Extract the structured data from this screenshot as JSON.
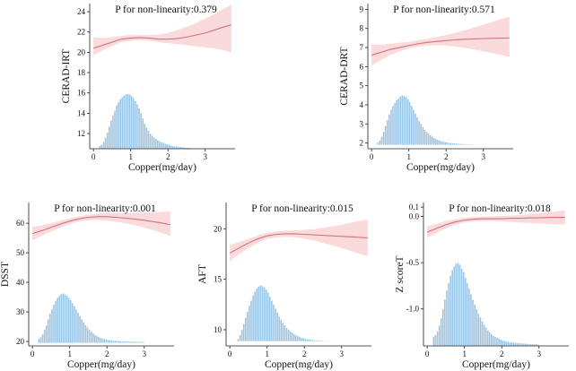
{
  "chart_data": [
    {
      "type": "line",
      "title": "P for non-linearity:0.379",
      "xlabel": "Copper(mg/day)",
      "ylabel": "CERAD-IRT",
      "x_ticks": [
        0,
        1,
        2,
        3
      ],
      "y_ticks": [
        12,
        14,
        16,
        18,
        20,
        22,
        24
      ],
      "xlim": [
        -0.1,
        3.8
      ],
      "ylim": [
        10.5,
        24.8
      ],
      "spline": {
        "x": [
          0.0,
          0.25,
          0.5,
          0.75,
          1.0,
          1.25,
          1.5,
          1.75,
          2.0,
          2.25,
          2.5,
          2.75,
          3.0,
          3.25,
          3.5,
          3.7
        ],
        "y": [
          20.4,
          20.7,
          21.0,
          21.3,
          21.4,
          21.45,
          21.4,
          21.3,
          21.3,
          21.35,
          21.5,
          21.7,
          21.9,
          22.2,
          22.5,
          22.7
        ],
        "lower": [
          19.7,
          20.2,
          20.6,
          21.0,
          21.15,
          21.2,
          21.15,
          21.0,
          20.9,
          20.8,
          20.7,
          20.6,
          20.5,
          20.4,
          20.2,
          20.0
        ],
        "upper": [
          21.5,
          21.4,
          21.5,
          21.65,
          21.7,
          21.7,
          21.7,
          21.75,
          21.9,
          22.2,
          22.5,
          22.9,
          23.3,
          23.8,
          24.3,
          24.7
        ]
      },
      "histogram": {
        "bin_start": 0.15,
        "bin_width": 0.05,
        "values": [
          10.8,
          10.9,
          11.2,
          11.6,
          12.1,
          12.7,
          13.3,
          13.8,
          14.3,
          14.8,
          15.1,
          15.4,
          15.6,
          15.75,
          15.85,
          15.9,
          15.85,
          15.7,
          15.5,
          15.2,
          14.9,
          14.5,
          14.0,
          13.5,
          13.0,
          12.6,
          12.3,
          12.0,
          11.8,
          11.6,
          11.5,
          11.35,
          11.25,
          11.15,
          11.1,
          11.0,
          10.95,
          10.9,
          10.85,
          10.8,
          10.75,
          10.75,
          10.7,
          10.7,
          10.65,
          10.65,
          10.6,
          10.6,
          10.6,
          10.58,
          10.56,
          10.55,
          10.55,
          10.54,
          10.53,
          10.53,
          10.52
        ],
        "baseline": 10.5
      }
    },
    {
      "type": "line",
      "title": "P for non-linearity:0.571",
      "xlabel": "Copper(mg/day)",
      "ylabel": "CERAD-DRT",
      "x_ticks": [
        0,
        1,
        2,
        3
      ],
      "y_ticks": [
        2,
        3,
        4,
        5,
        6,
        7,
        8,
        9
      ],
      "xlim": [
        -0.1,
        3.8
      ],
      "ylim": [
        1.7,
        9.3
      ],
      "spline": {
        "x": [
          0.0,
          0.25,
          0.5,
          0.75,
          1.0,
          1.25,
          1.5,
          1.75,
          2.0,
          2.25,
          2.5,
          2.75,
          3.0,
          3.25,
          3.5,
          3.7
        ],
        "y": [
          6.6,
          6.75,
          6.9,
          7.0,
          7.1,
          7.2,
          7.27,
          7.32,
          7.36,
          7.4,
          7.43,
          7.45,
          7.47,
          7.48,
          7.49,
          7.5
        ],
        "lower": [
          6.05,
          6.35,
          6.6,
          6.8,
          6.95,
          7.05,
          7.1,
          7.12,
          7.1,
          7.05,
          6.98,
          6.9,
          6.8,
          6.7,
          6.6,
          6.5
        ],
        "upper": [
          7.15,
          7.15,
          7.2,
          7.25,
          7.3,
          7.38,
          7.45,
          7.55,
          7.65,
          7.78,
          7.9,
          8.05,
          8.2,
          8.35,
          8.5,
          8.6
        ]
      },
      "histogram": {
        "bin_start": 0.15,
        "bin_width": 0.05,
        "values": [
          2.05,
          2.15,
          2.35,
          2.6,
          2.9,
          3.2,
          3.5,
          3.75,
          3.95,
          4.1,
          4.25,
          4.35,
          4.45,
          4.5,
          4.48,
          4.42,
          4.3,
          4.15,
          3.95,
          3.75,
          3.55,
          3.35,
          3.15,
          3.0,
          2.85,
          2.7,
          2.6,
          2.5,
          2.42,
          2.35,
          2.28,
          2.22,
          2.18,
          2.14,
          2.1,
          2.08,
          2.06,
          2.04,
          2.02,
          2.01,
          2.0,
          1.99,
          1.98,
          1.97,
          1.96,
          1.96,
          1.95,
          1.95,
          1.94,
          1.94,
          1.93,
          1.93,
          1.92,
          1.92,
          1.92,
          1.92,
          1.91
        ],
        "baseline": 1.9
      }
    },
    {
      "type": "line",
      "title": "P for non-linearity:0.001",
      "xlabel": "Copper(mg/day)",
      "ylabel": "DSST",
      "x_ticks": [
        0,
        1,
        2,
        3
      ],
      "y_ticks": [
        20,
        30,
        40,
        50,
        60
      ],
      "xlim": [
        -0.1,
        3.8
      ],
      "ylim": [
        18.5,
        67
      ],
      "spline": {
        "x": [
          0.0,
          0.25,
          0.5,
          0.75,
          1.0,
          1.25,
          1.5,
          1.75,
          2.0,
          2.25,
          2.5,
          2.75,
          3.0,
          3.25,
          3.5,
          3.7
        ],
        "y": [
          56.5,
          57.5,
          58.6,
          59.7,
          60.7,
          61.5,
          62.0,
          62.2,
          62.2,
          62.0,
          61.7,
          61.4,
          61.0,
          60.5,
          60.0,
          59.5
        ],
        "lower": [
          54.2,
          55.8,
          57.2,
          58.5,
          59.8,
          60.6,
          61.0,
          61.1,
          60.9,
          60.5,
          60.0,
          59.3,
          58.5,
          57.6,
          56.6,
          55.7
        ],
        "upper": [
          58.8,
          59.2,
          60.0,
          60.9,
          61.6,
          62.3,
          62.9,
          63.3,
          63.5,
          63.5,
          63.4,
          63.5,
          63.6,
          63.7,
          63.9,
          64.1
        ]
      },
      "histogram": {
        "bin_start": 0.15,
        "bin_width": 0.05,
        "values": [
          21.0,
          21.5,
          22.5,
          24.0,
          25.5,
          27.5,
          29.5,
          31.0,
          32.5,
          33.8,
          34.8,
          35.5,
          36.0,
          36.3,
          36.0,
          35.5,
          34.8,
          34.0,
          33.0,
          32.0,
          30.8,
          29.8,
          28.6,
          27.5,
          26.5,
          25.6,
          24.8,
          24.0,
          23.4,
          22.8,
          22.3,
          21.9,
          21.6,
          21.3,
          21.1,
          20.9,
          20.7,
          20.6,
          20.5,
          20.4,
          20.3,
          20.3,
          20.2,
          20.2,
          20.1,
          20.1,
          20.1,
          20.0,
          20.0,
          20.0,
          20.0,
          20.0,
          20.0,
          19.95,
          19.95,
          19.95,
          19.9
        ],
        "baseline": 19.5
      }
    },
    {
      "type": "line",
      "title": "P for non-linearity:0.015",
      "xlabel": "Copper(mg/day)",
      "ylabel": "AFT",
      "x_ticks": [
        0,
        1,
        2,
        3
      ],
      "y_ticks": [
        10,
        15,
        20
      ],
      "xlim": [
        -0.1,
        3.8
      ],
      "ylim": [
        8.4,
        22.6
      ],
      "spline": {
        "x": [
          0.0,
          0.25,
          0.5,
          0.75,
          1.0,
          1.25,
          1.5,
          1.75,
          2.0,
          2.25,
          2.5,
          2.75,
          3.0,
          3.25,
          3.5,
          3.7
        ],
        "y": [
          17.6,
          18.1,
          18.6,
          19.0,
          19.3,
          19.45,
          19.5,
          19.5,
          19.45,
          19.4,
          19.35,
          19.3,
          19.25,
          19.2,
          19.15,
          19.1
        ],
        "lower": [
          16.8,
          17.5,
          18.1,
          18.6,
          19.0,
          19.15,
          19.2,
          19.15,
          19.0,
          18.85,
          18.6,
          18.35,
          18.1,
          17.8,
          17.5,
          17.3
        ],
        "upper": [
          18.4,
          18.7,
          19.0,
          19.35,
          19.6,
          19.75,
          19.8,
          19.85,
          19.9,
          19.95,
          20.1,
          20.25,
          20.4,
          20.6,
          20.8,
          20.9
        ]
      },
      "histogram": {
        "bin_start": 0.15,
        "bin_width": 0.05,
        "values": [
          8.9,
          9.1,
          9.5,
          10.0,
          10.6,
          11.2,
          11.8,
          12.4,
          12.9,
          13.4,
          13.8,
          14.1,
          14.3,
          14.4,
          14.35,
          14.2,
          14.0,
          13.7,
          13.3,
          12.9,
          12.5,
          12.1,
          11.7,
          11.3,
          11.0,
          10.7,
          10.45,
          10.2,
          10.0,
          9.85,
          9.7,
          9.58,
          9.47,
          9.38,
          9.3,
          9.23,
          9.17,
          9.12,
          9.08,
          9.05,
          9.02,
          9.0,
          8.98,
          8.96,
          8.95,
          8.94,
          8.93,
          8.92,
          8.91,
          8.9,
          8.9,
          8.89,
          8.89,
          8.88,
          8.88,
          8.88,
          8.87
        ],
        "baseline": 8.85
      }
    },
    {
      "type": "line",
      "title": "P for non-linearity:0.018",
      "xlabel": "Copper(mg/day)",
      "ylabel": "Z scoreT",
      "x_ticks": [
        0,
        1,
        2,
        3
      ],
      "y_ticks": [
        -1.0,
        -0.5,
        0.0,
        0.1
      ],
      "y_tick_labels": [
        "-1.0",
        "-0.5",
        "0.0",
        "0.1"
      ],
      "xlim": [
        -0.1,
        3.8
      ],
      "ylim": [
        -1.4,
        0.15
      ],
      "spline": {
        "x": [
          0.0,
          0.25,
          0.5,
          0.75,
          1.0,
          1.25,
          1.5,
          1.75,
          2.0,
          2.25,
          2.5,
          2.75,
          3.0,
          3.25,
          3.5,
          3.7
        ],
        "y": [
          -0.17,
          -0.13,
          -0.09,
          -0.06,
          -0.04,
          -0.03,
          -0.025,
          -0.025,
          -0.025,
          -0.02,
          -0.02,
          -0.015,
          -0.015,
          -0.01,
          -0.01,
          -0.01
        ],
        "lower": [
          -0.23,
          -0.18,
          -0.13,
          -0.09,
          -0.065,
          -0.055,
          -0.05,
          -0.05,
          -0.055,
          -0.06,
          -0.065,
          -0.07,
          -0.075,
          -0.08,
          -0.085,
          -0.09
        ],
        "upper": [
          -0.11,
          -0.08,
          -0.05,
          -0.03,
          -0.015,
          -0.005,
          0.0,
          0.0,
          0.005,
          0.01,
          0.015,
          0.025,
          0.035,
          0.045,
          0.055,
          0.065
        ]
      },
      "histogram": {
        "bin_start": 0.15,
        "bin_width": 0.05,
        "values": [
          -1.3,
          -1.28,
          -1.24,
          -1.18,
          -1.1,
          -1.0,
          -0.9,
          -0.8,
          -0.72,
          -0.64,
          -0.58,
          -0.54,
          -0.51,
          -0.5,
          -0.52,
          -0.56,
          -0.6,
          -0.66,
          -0.72,
          -0.78,
          -0.84,
          -0.9,
          -0.95,
          -1.0,
          -1.05,
          -1.09,
          -1.13,
          -1.17,
          -1.2,
          -1.23,
          -1.25,
          -1.27,
          -1.29,
          -1.3,
          -1.31,
          -1.32,
          -1.33,
          -1.34,
          -1.345,
          -1.35,
          -1.355,
          -1.36,
          -1.36,
          -1.365,
          -1.365,
          -1.37,
          -1.37,
          -1.37,
          -1.375,
          -1.375,
          -1.375,
          -1.38,
          -1.38,
          -1.38,
          -1.38,
          -1.38,
          -1.385
        ],
        "baseline": -1.4
      }
    }
  ],
  "colors": {
    "ci_band": "#f9d3d5",
    "line": "#d2737c",
    "histogram": "#9cc6e6",
    "histogram_edge": "#ffffff",
    "axis": "#222222"
  }
}
